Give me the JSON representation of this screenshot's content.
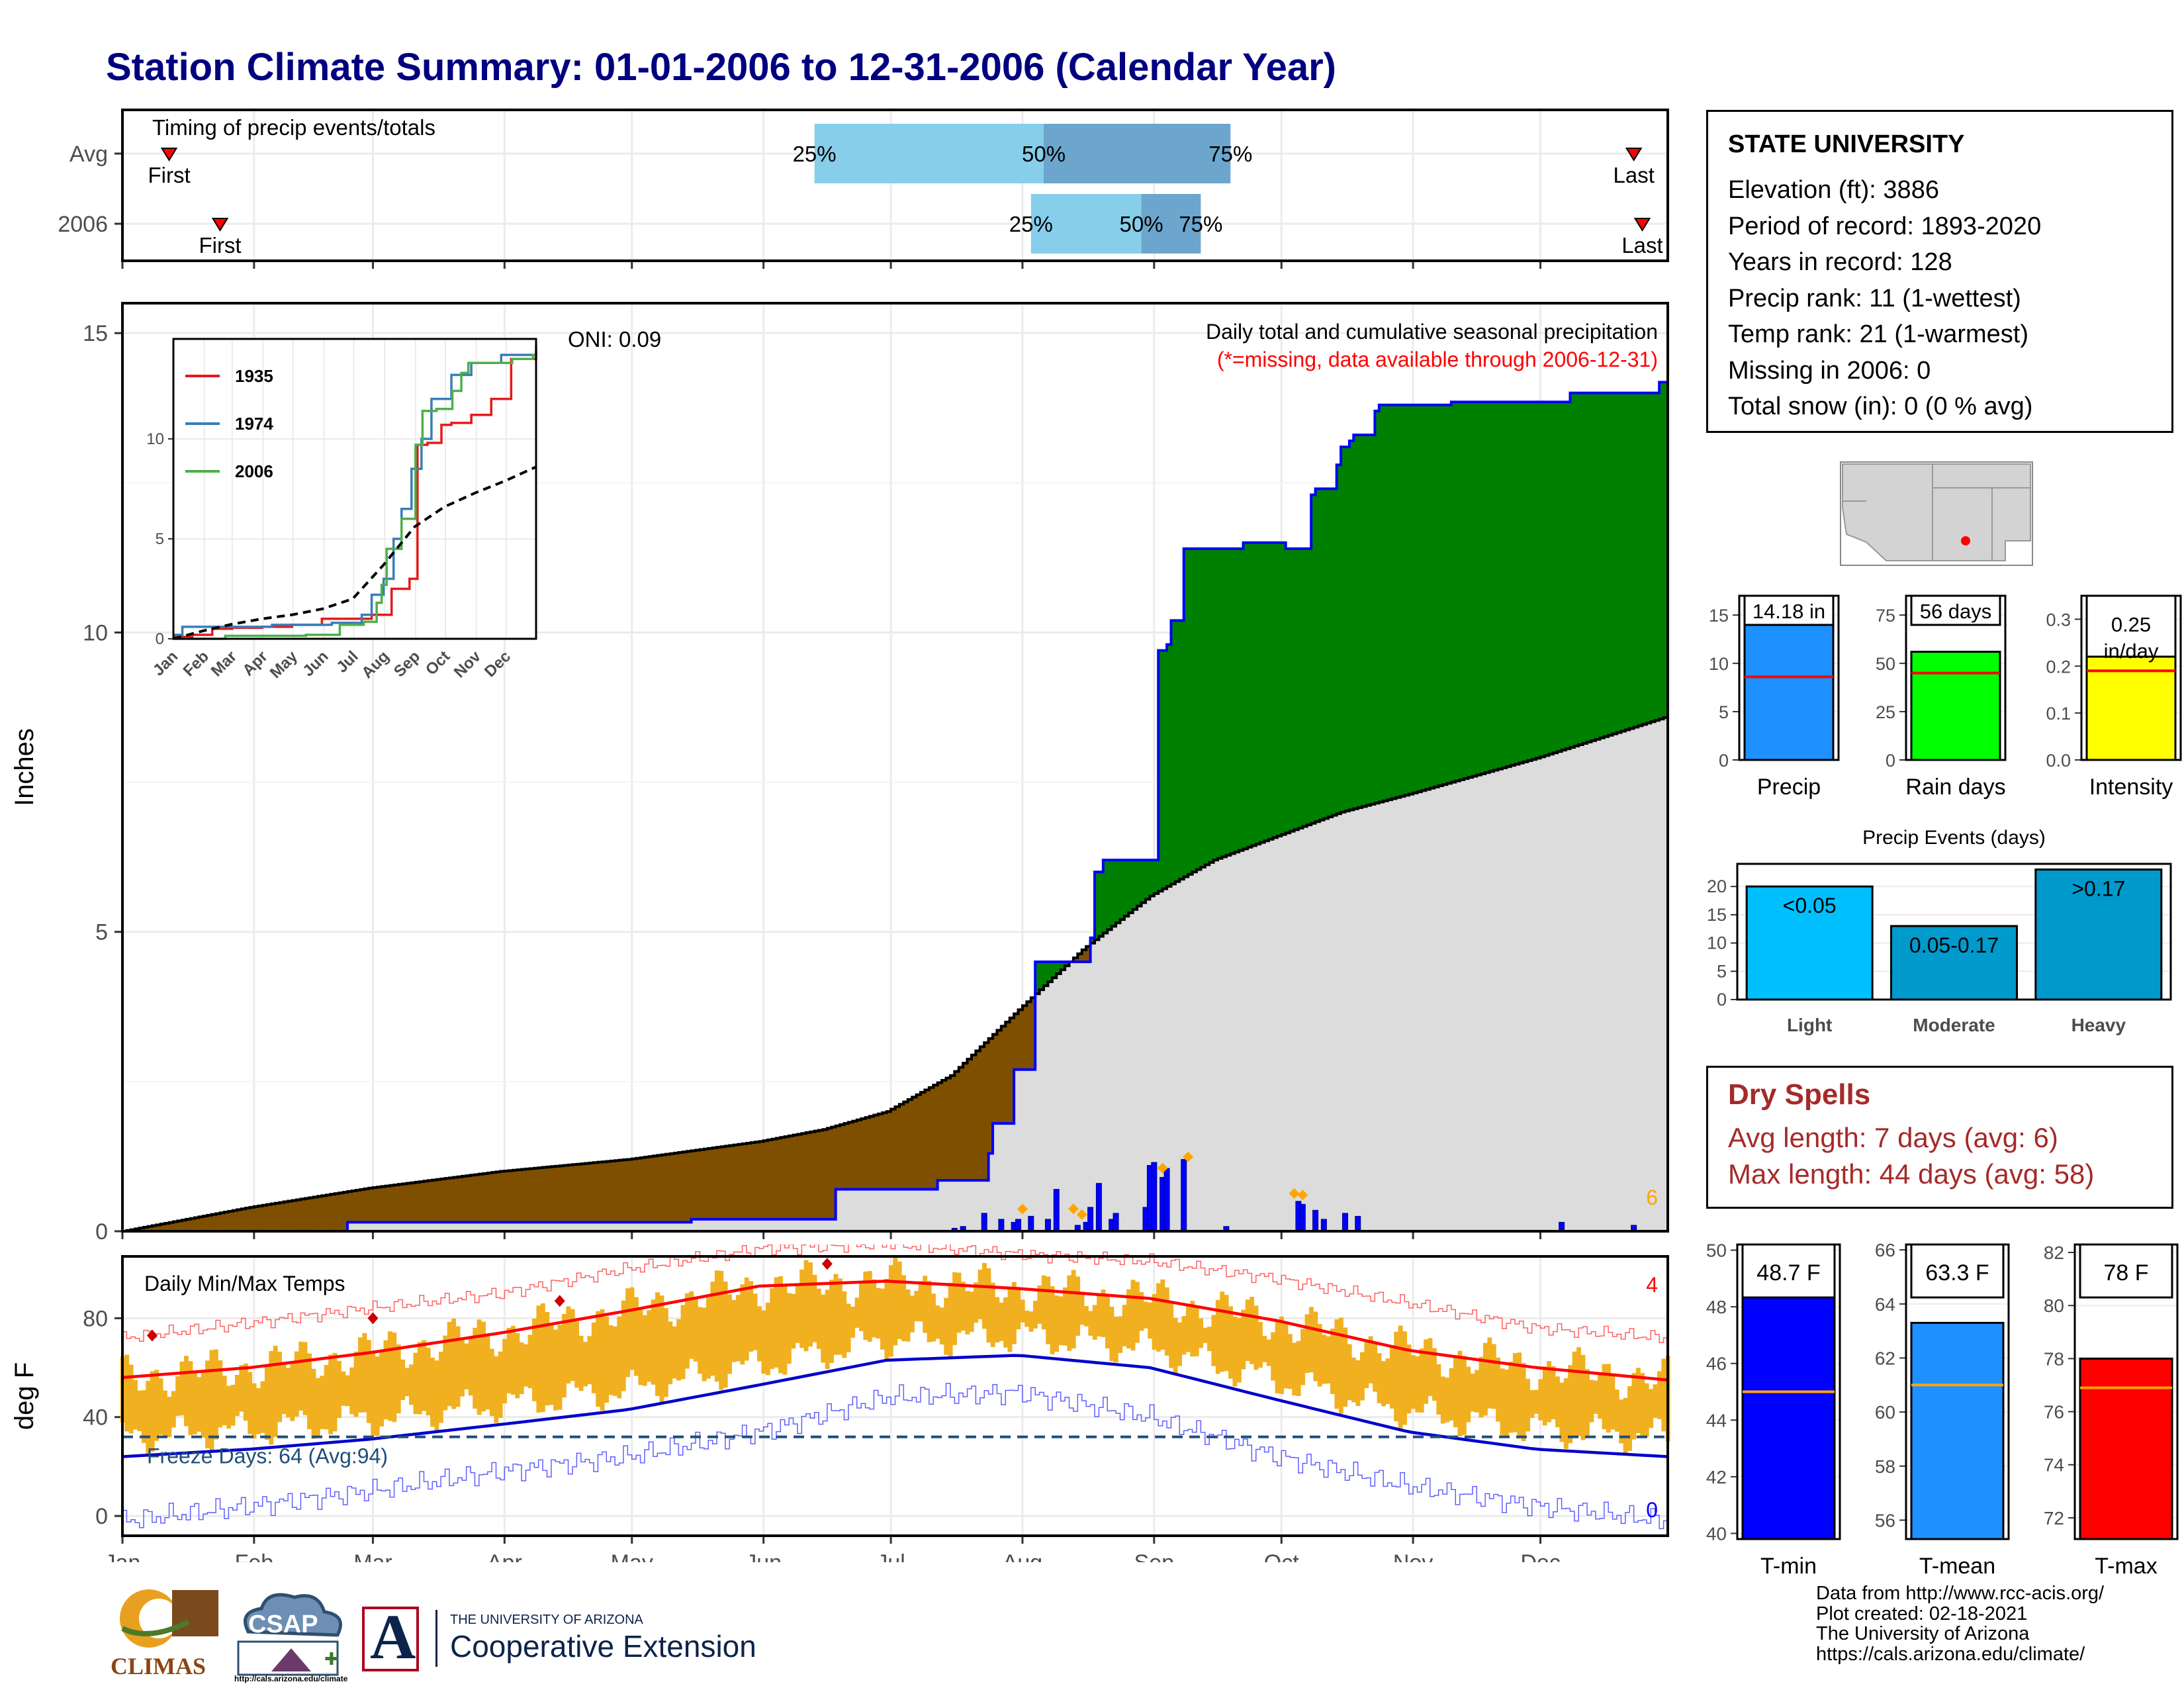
{
  "title": "Station Climate Summary: 01-01-2006 to 12-31-2006 (Calendar Year)",
  "station": {
    "name": "STATE UNIVERSITY",
    "lines": [
      "Elevation (ft): 3886",
      "Period of record: 1893-2020",
      "Years in record: 128",
      "Precip rank: 11 (1-wettest)",
      "Temp rank: 21 (1-warmest)",
      "Missing in 2006: 0",
      "Total snow (in): 0 (0 % avg)"
    ]
  },
  "dry_spells": {
    "title": "Dry Spells",
    "avg_line": "Avg length: 7 days (avg: 6)",
    "max_line": "Max length: 44 days (avg: 58)"
  },
  "credits": [
    "Data from http://www.rcc-acis.org/",
    "Plot created: 02-18-2021",
    "The University of Arizona",
    "https://cals.arizona.edu/climate/"
  ],
  "logos": {
    "climas": "CLIMAS",
    "csap": "CSAP",
    "csap_url": "http://cals.arizona.edu/climate",
    "ua_line1": "THE UNIVERSITY OF ARIZONA",
    "ua_line2": "Cooperative Extension",
    "ua_letter": "A"
  },
  "colors": {
    "above_avg": "#008000",
    "below_avg": "#7F4F00",
    "avg_fill": "#DCDCDC",
    "cumulative_line": "#0000FF",
    "temp_bars": "#F0B020",
    "tmax_avg": "#FF0000",
    "tmin_avg": "#0000CC",
    "quartile_light": "#87CEEB",
    "quartile_dark": "#6CA6CD"
  },
  "chart_data": [
    {
      "id": "timing",
      "type": "bar",
      "title": "Timing of precip events/totals",
      "rows": [
        {
          "label": "Avg",
          "first_day": 12,
          "last_day": 357,
          "p25": 164,
          "p50": 218,
          "p75": 262,
          "p25_label": "25%",
          "p50_label": "50%",
          "p75_label": "75%",
          "first_label": "First",
          "last_label": "Last"
        },
        {
          "label": "2006",
          "first_day": 24,
          "last_day": 359,
          "p25": 215,
          "p50": 241,
          "p75": 255,
          "p25_label": "25%",
          "p50_label": "50%",
          "p75_label": "75%",
          "first_label": "First",
          "last_label": "Last"
        }
      ]
    },
    {
      "id": "precip",
      "type": "area",
      "ylabel": "Inches",
      "ylim": [
        0,
        15.5
      ],
      "yticks": [
        0,
        5,
        10,
        15
      ],
      "annotation_oni": "ONI: 0.09",
      "annotation_title": "Daily total and cumulative seasonal precipitation",
      "annotation_missing": "(*=missing, data available through 2006-12-31)",
      "count_label": "6",
      "cumulative_2006": {
        "day": [
          1,
          53,
          54,
          134,
          135,
          168,
          169,
          192,
          193,
          205,
          206,
          210,
          211,
          215,
          216,
          229,
          230,
          231,
          232,
          244,
          245,
          247,
          248,
          250,
          251,
          264,
          265,
          274,
          275,
          281,
          282,
          287,
          288,
          290,
          291,
          296,
          297,
          313,
          314,
          341,
          342,
          362,
          363,
          365
        ],
        "value": [
          0.0,
          0.0,
          0.15,
          0.15,
          0.2,
          0.2,
          0.7,
          0.7,
          0.85,
          1.3,
          1.8,
          1.8,
          2.7,
          2.7,
          4.5,
          4.9,
          6.0,
          6.0,
          6.2,
          6.2,
          9.7,
          9.8,
          10.2,
          10.2,
          11.4,
          11.4,
          11.5,
          11.5,
          11.4,
          12.3,
          12.4,
          12.8,
          13.1,
          13.2,
          13.3,
          13.7,
          13.8,
          13.8,
          13.85,
          13.85,
          14.0,
          14.0,
          14.18,
          14.18
        ]
      },
      "average_cumulative": {
        "day": [
          1,
          31,
          59,
          90,
          120,
          151,
          166,
          181,
          196,
          212,
          227,
          243,
          258,
          273,
          288,
          304,
          319,
          334,
          365
        ],
        "value": [
          0.0,
          0.4,
          0.72,
          1.0,
          1.2,
          1.5,
          1.7,
          2.0,
          2.6,
          3.7,
          4.7,
          5.6,
          6.2,
          6.6,
          7.0,
          7.3,
          7.6,
          7.9,
          8.6
        ]
      },
      "daily_precip": {
        "day": [
          197,
          199,
          204,
          208,
          211,
          212,
          215,
          219,
          221,
          226,
          228,
          229,
          231,
          234,
          235,
          242,
          243,
          244,
          246,
          247,
          251,
          261,
          278,
          279,
          282,
          284,
          289,
          292,
          340,
          357
        ],
        "value": [
          0.05,
          0.08,
          0.3,
          0.2,
          0.15,
          0.2,
          0.25,
          0.2,
          0.7,
          0.1,
          0.15,
          0.4,
          0.8,
          0.2,
          0.3,
          0.4,
          1.1,
          1.15,
          0.9,
          1.05,
          1.2,
          0.08,
          0.5,
          0.45,
          0.35,
          0.2,
          0.3,
          0.25,
          0.15,
          0.1
        ]
      },
      "daily_markers": [
        213,
        225,
        227,
        246,
        252,
        277,
        279
      ]
    },
    {
      "id": "inset",
      "type": "line",
      "ylim": [
        0,
        15
      ],
      "yticks": [
        0,
        5,
        10
      ],
      "months": [
        "Jan",
        "Feb",
        "Mar",
        "Apr",
        "May",
        "Jun",
        "Jul",
        "Aug",
        "Sep",
        "Oct",
        "Nov",
        "Dec"
      ],
      "series": [
        {
          "name": "1935",
          "color": "#E41A1C",
          "x": [
            1,
            20,
            40,
            60,
            90,
            120,
            150,
            175,
            200,
            220,
            238,
            246,
            256,
            270,
            280,
            300,
            320,
            340,
            365
          ],
          "y": [
            0.1,
            0.2,
            0.5,
            0.55,
            0.6,
            0.7,
            1.0,
            1.0,
            1.2,
            2.5,
            3.0,
            9.7,
            9.8,
            10.7,
            10.8,
            11.2,
            12.0,
            14.0,
            14.4
          ]
        },
        {
          "name": "1974",
          "color": "#377EB8",
          "x": [
            1,
            10,
            40,
            70,
            100,
            130,
            160,
            190,
            200,
            212,
            222,
            230,
            240,
            250,
            260,
            280,
            300,
            330,
            365
          ],
          "y": [
            0.2,
            0.6,
            0.6,
            0.6,
            0.7,
            0.7,
            0.8,
            1.2,
            2.2,
            3.0,
            5.0,
            6.5,
            8.5,
            10.0,
            12.0,
            13.2,
            13.8,
            14.2,
            14.7
          ]
        },
        {
          "name": "2006",
          "color": "#4DAF4A",
          "x": [
            1,
            53,
            134,
            168,
            192,
            205,
            210,
            215,
            230,
            244,
            251,
            265,
            281,
            290,
            297,
            341,
            362,
            365
          ],
          "y": [
            0.0,
            0.15,
            0.2,
            0.7,
            0.85,
            1.8,
            2.7,
            4.5,
            6.0,
            9.7,
            11.4,
            11.5,
            12.4,
            13.3,
            13.8,
            14.0,
            14.18,
            14.18
          ]
        },
        {
          "name": "avg",
          "color": "#000000",
          "dash": true,
          "x": [
            1,
            31,
            59,
            90,
            120,
            151,
            181,
            212,
            243,
            273,
            304,
            334,
            365
          ],
          "y": [
            0.0,
            0.4,
            0.72,
            1.0,
            1.2,
            1.5,
            2.0,
            3.7,
            5.6,
            6.6,
            7.3,
            7.9,
            8.6
          ]
        }
      ]
    },
    {
      "id": "temps",
      "type": "bar",
      "title": "Daily Min/Max Temps",
      "ylabel": "deg F",
      "ylim": [
        -8,
        105
      ],
      "yticks": [
        0,
        40,
        80
      ],
      "freeze_label": "Freeze Days: 64 (Avg:94)",
      "freeze_line": 32,
      "count_top": "4",
      "count_bottom": "0",
      "months": [
        "Jan",
        "Feb",
        "Mar",
        "Apr",
        "May",
        "Jun",
        "Jul",
        "Aug",
        "Sep",
        "Oct",
        "Nov",
        "Dec"
      ],
      "avg_tmax": {
        "day": [
          1,
          31,
          59,
          90,
          120,
          151,
          181,
          212,
          243,
          273,
          304,
          334,
          365
        ],
        "value": [
          56,
          60,
          66,
          74,
          83,
          93,
          95,
          92,
          88,
          79,
          67,
          60,
          55
        ]
      },
      "avg_tmin": {
        "day": [
          1,
          31,
          59,
          90,
          120,
          151,
          181,
          212,
          243,
          273,
          304,
          334,
          365
        ],
        "value": [
          24,
          27,
          31,
          37,
          43,
          53,
          63,
          65,
          60,
          47,
          34,
          27,
          24
        ]
      },
      "record_max": {
        "day": [
          1,
          31,
          59,
          90,
          120,
          151,
          181,
          212,
          243,
          273,
          304,
          334,
          365
        ],
        "value": [
          72,
          78,
          84,
          90,
          100,
          108,
          110,
          106,
          103,
          96,
          86,
          76,
          72
        ]
      },
      "record_min": {
        "day": [
          1,
          31,
          59,
          90,
          120,
          151,
          181,
          212,
          243,
          273,
          304,
          334,
          365
        ],
        "value": [
          -2,
          4,
          10,
          18,
          24,
          34,
          48,
          50,
          40,
          24,
          12,
          4,
          -2
        ]
      },
      "record_markers": {
        "day": [
          8,
          60,
          104,
          167
        ],
        "value": [
          73,
          80,
          87,
          102
        ]
      }
    },
    {
      "id": "summary_precip",
      "type": "bar",
      "panels": [
        {
          "label": "Precip",
          "value_label": "14.18 in",
          "value": 14.18,
          "avg": 8.6,
          "ylim": [
            0,
            17
          ],
          "yticks": [
            0,
            5,
            10,
            15
          ],
          "color": "#1E90FF"
        },
        {
          "label": "Rain days",
          "value_label": "56 days",
          "value": 56,
          "avg": 45,
          "ylim": [
            0,
            85
          ],
          "yticks": [
            0,
            25,
            50,
            75
          ],
          "color": "#00FF00"
        },
        {
          "label": "Intensity",
          "value_label": "0.25 in/day",
          "value": 0.25,
          "avg": 0.19,
          "ylim": [
            0,
            0.35
          ],
          "yticks": [
            0.0,
            0.1,
            0.2,
            0.3
          ],
          "color": "#FFFF00"
        }
      ]
    },
    {
      "id": "events",
      "type": "bar",
      "title": "Precip Events (days)",
      "categories": [
        "Light",
        "Moderate",
        "Heavy"
      ],
      "values": [
        20,
        13,
        23
      ],
      "bar_labels": [
        "<0.05",
        "0.05-0.17",
        ">0.17"
      ],
      "colors": [
        "#00BFFF",
        "#009ACD",
        "#0099CC"
      ],
      "ylim": [
        0,
        24
      ],
      "yticks": [
        0,
        5,
        10,
        15,
        20
      ]
    },
    {
      "id": "summary_temp",
      "type": "bar",
      "panels": [
        {
          "label": "T-min",
          "value_label": "48.7 F",
          "value": 48.7,
          "avg": 45.0,
          "ylim": [
            39.8,
            50.2
          ],
          "yticks": [
            40,
            42,
            44,
            46,
            48,
            50
          ],
          "color": "#0000FF"
        },
        {
          "label": "T-mean",
          "value_label": "63.3 F",
          "value": 63.3,
          "avg": 61.0,
          "ylim": [
            55.3,
            66.2
          ],
          "yticks": [
            56,
            58,
            60,
            62,
            64,
            66
          ],
          "color": "#1E90FF"
        },
        {
          "label": "T-max",
          "value_label": "78 F",
          "value": 78.0,
          "avg": 76.9,
          "ylim": [
            71.2,
            82.3
          ],
          "yticks": [
            72,
            74,
            76,
            78,
            80,
            82
          ],
          "color": "#FF0000"
        }
      ]
    }
  ]
}
